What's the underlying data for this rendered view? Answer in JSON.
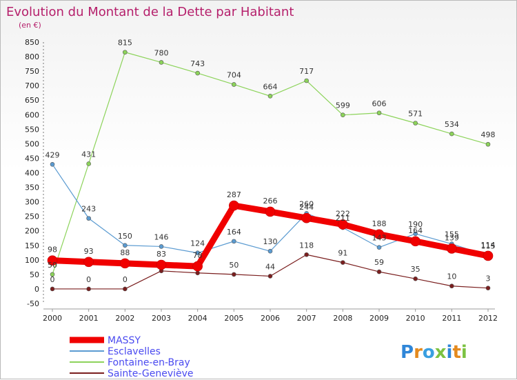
{
  "chart_data": {
    "type": "line",
    "title": "Evolution du Montant de la Dette par Habitant",
    "subtitle": "(en €)",
    "xlabel": "",
    "ylabel": "",
    "x": [
      "2000",
      "2001",
      "2002",
      "2003",
      "2004",
      "2005",
      "2006",
      "2007",
      "2008",
      "2009",
      "2010",
      "2011",
      "2012"
    ],
    "ylim": [
      -50,
      850
    ],
    "yticks": [
      -50,
      0,
      50,
      100,
      150,
      200,
      250,
      300,
      350,
      400,
      450,
      500,
      550,
      600,
      650,
      700,
      750,
      800,
      850
    ],
    "grid": false,
    "legend_position": "bottom-left",
    "series": [
      {
        "name": "MASSY",
        "color": "#f00000",
        "values": [
          98,
          93,
          88,
          83,
          78,
          287,
          266,
          244,
          222,
          188,
          164,
          139,
          114
        ],
        "labels": [
          "98",
          "93",
          "88",
          "83",
          "78",
          "287",
          "266",
          "244",
          "222",
          "188",
          "164",
          "139",
          "114"
        ]
      },
      {
        "name": "Esclavelles",
        "color": "#5b9bd1",
        "values": [
          429,
          243,
          150,
          146,
          124,
          164,
          130,
          260,
          211,
          143,
          190,
          155,
          115
        ],
        "labels": [
          "429",
          "243",
          "150",
          "146",
          "124",
          "164",
          "130",
          "260",
          "211",
          "143",
          "190",
          "155",
          "115"
        ]
      },
      {
        "name": "Fontaine-en-Bray",
        "color": "#8cd35a",
        "values": [
          50,
          431,
          815,
          780,
          743,
          704,
          664,
          717,
          599,
          606,
          571,
          534,
          498
        ],
        "labels": [
          "50",
          "431",
          "815",
          "780",
          "743",
          "704",
          "664",
          "717",
          "599",
          "606",
          "571",
          "534",
          "498"
        ]
      },
      {
        "name": "Sainte-Geneviève",
        "color": "#7a1e1e",
        "values": [
          0,
          0,
          0,
          62,
          55,
          50,
          44,
          118,
          91,
          59,
          35,
          10,
          3
        ],
        "labels": [
          "0",
          "0",
          "0",
          "",
          "",
          "50",
          "44",
          "118",
          "91",
          "59",
          "35",
          "10",
          "3"
        ]
      }
    ]
  },
  "legend_text_color": "#4a4af0",
  "logo": {
    "text": "Proxiti",
    "letter_colors": [
      "#2f86d8",
      "#e48a1e",
      "#3a9fe0",
      "#7cc242",
      "#2f86d8",
      "#e48a1e",
      "#7cc242"
    ]
  }
}
